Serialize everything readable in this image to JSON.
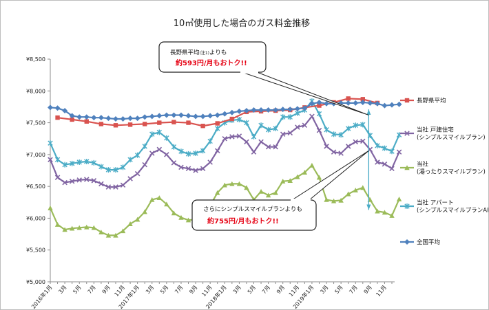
{
  "chart_data": {
    "type": "line",
    "title": "10㎥使用した場合のガス料金推移",
    "xlabel": "",
    "ylabel": "",
    "ylim": [
      5000,
      8500
    ],
    "yticks": [
      "¥5,000",
      "¥5,500",
      "¥6,000",
      "¥6,500",
      "¥7,000",
      "¥7,500",
      "¥8,000",
      "¥8,500"
    ],
    "ytick_values": [
      5000,
      5500,
      6000,
      6500,
      7000,
      7500,
      8000,
      8500
    ],
    "x_month_labels": [
      "2016年1月",
      "3月",
      "5月",
      "7月",
      "9月",
      "11月",
      "2017年1月",
      "3月",
      "5月",
      "7月",
      "9月",
      "11月",
      "2018年1月",
      "3月",
      "5月",
      "7月",
      "9月",
      "11月",
      "2019年1月",
      "3月",
      "5月",
      "7月",
      "9月",
      "11月"
    ],
    "grid": false,
    "legend_position": "right",
    "series": [
      {
        "name": "長野県平均",
        "color": "#d9534f",
        "marker": "square",
        "values": [
          null,
          7580,
          null,
          7550,
          null,
          7520,
          null,
          7480,
          null,
          7460,
          null,
          7470,
          null,
          7480,
          null,
          7500,
          null,
          7510,
          null,
          7500,
          null,
          7450,
          null,
          7490,
          null,
          7560,
          null,
          7670,
          null,
          7680,
          null,
          7690,
          null,
          7700,
          null,
          7740,
          null,
          7770,
          null,
          7820,
          null,
          7880,
          null,
          7870,
          null,
          7810,
          null,
          null
        ]
      },
      {
        "name": "当社 戸建住宅\n(シンプルスマイルプラン)",
        "color": "#8064a2",
        "marker": "x",
        "values": [
          6920,
          6640,
          6560,
          6580,
          6600,
          6610,
          6590,
          6540,
          6490,
          6490,
          6520,
          6620,
          6700,
          6840,
          7020,
          7080,
          7000,
          6870,
          6800,
          6780,
          6750,
          6780,
          6880,
          7060,
          7250,
          7280,
          7290,
          7200,
          7040,
          7200,
          7120,
          7120,
          7320,
          7340,
          7430,
          7460,
          7600,
          7380,
          7130,
          7040,
          7020,
          7130,
          7200,
          7210,
          7080,
          6880,
          6850,
          6780,
          7040
        ]
      },
      {
        "name": "当社\n(湯ったりスマイルプラン)",
        "color": "#9bbb59",
        "marker": "triangle",
        "values": [
          6160,
          5900,
          5820,
          5840,
          5850,
          5860,
          5850,
          5780,
          5730,
          5730,
          5800,
          5910,
          5980,
          6100,
          6290,
          6320,
          6220,
          6080,
          6010,
          5970,
          5980,
          6050,
          6200,
          6400,
          6520,
          6540,
          6540,
          6480,
          6290,
          6420,
          6360,
          6400,
          6580,
          6590,
          6650,
          6720,
          6830,
          6640,
          6290,
          6270,
          6280,
          6380,
          6440,
          6480,
          6290,
          6110,
          6090,
          6040,
          6300
        ]
      },
      {
        "name": "当社 アパート\n(シンプルスマイルプランAP)",
        "color": "#4bacc6",
        "marker": "star",
        "values": [
          7180,
          6920,
          6840,
          6860,
          6880,
          6890,
          6870,
          6810,
          6760,
          6760,
          6800,
          6920,
          6990,
          7130,
          7320,
          7350,
          7260,
          7120,
          7050,
          7010,
          7020,
          7060,
          7210,
          7410,
          7500,
          7540,
          7550,
          7500,
          7280,
          7460,
          7390,
          7410,
          7590,
          7590,
          7650,
          7700,
          7840,
          7640,
          7390,
          7320,
          7310,
          7410,
          7460,
          7470,
          7300,
          7140,
          7100,
          7050,
          7310
        ]
      },
      {
        "name": "全国平均",
        "color": "#4f81bd",
        "marker": "diamond",
        "values": [
          7740,
          7730,
          7690,
          7610,
          7590,
          7590,
          7580,
          7580,
          7570,
          7560,
          7560,
          7570,
          7570,
          7590,
          7600,
          7610,
          7620,
          7620,
          7620,
          7610,
          7600,
          7600,
          7610,
          7620,
          7640,
          7660,
          7680,
          7690,
          7700,
          7700,
          7700,
          7700,
          7710,
          7710,
          7720,
          7730,
          7800,
          7820,
          7800,
          7800,
          7810,
          7810,
          7810,
          7820,
          7810,
          7800,
          7770,
          7780,
          7790
        ]
      }
    ],
    "annotations": [
      {
        "line1": "長野県平均",
        "sup": "(注1)",
        "line1b": "よりも",
        "line2": "約593円/月もおトク!!"
      },
      {
        "line1": "さらにシンプルスマイルプランよりも",
        "line2": "約755円/月もおトク!!"
      }
    ]
  }
}
